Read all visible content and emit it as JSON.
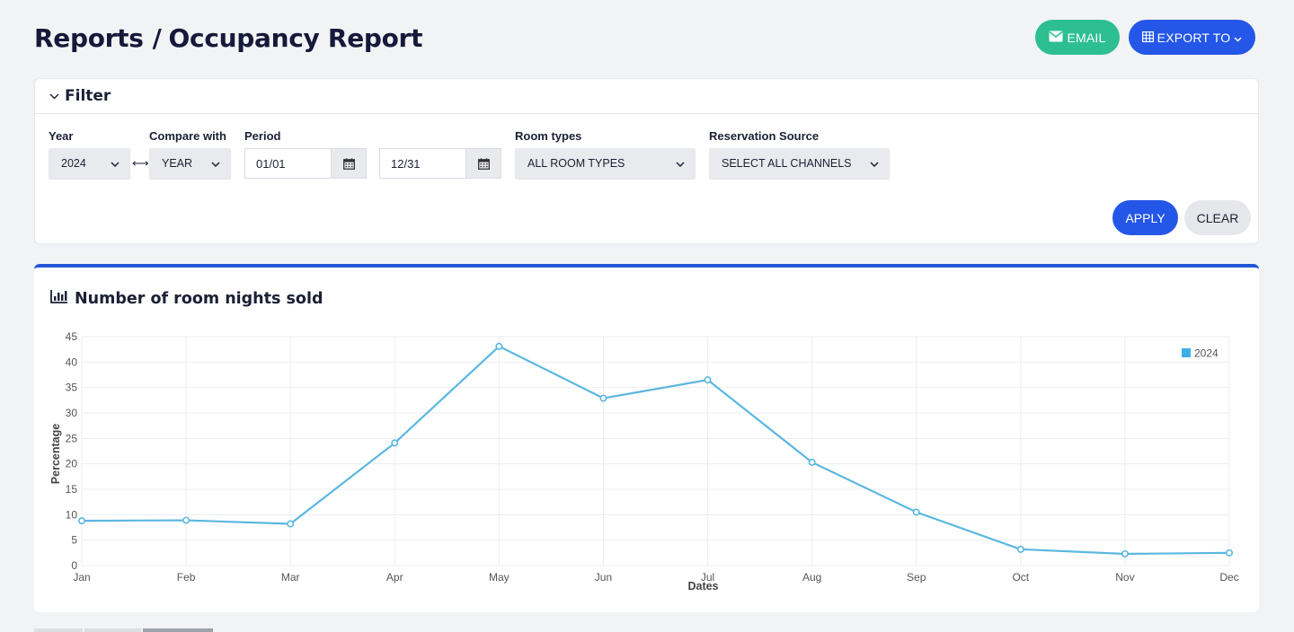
{
  "header": {
    "crumb_root": "Reports",
    "separator": "/",
    "crumb_current": "Occupancy Report"
  },
  "actions": {
    "email_label": "EMAIL",
    "export_label": "EXPORT TO"
  },
  "filter": {
    "title": "Filter",
    "year_label": "Year",
    "year_value": "2024",
    "compare_label": "Compare with",
    "compare_value": "YEAR",
    "period_label": "Period",
    "period_start": "01/01",
    "period_end": "12/31",
    "room_types_label": "Room types",
    "room_types_value": "ALL ROOM TYPES",
    "source_label": "Reservation Source",
    "source_value": "SELECT ALL CHANNELS",
    "apply_label": "APPLY",
    "clear_label": "CLEAR"
  },
  "chart_card": {
    "title": "Number of room nights sold",
    "icon": "bar-chart-icon"
  },
  "colors": {
    "line": "#5ab7e0",
    "point_fill": "#ffffff",
    "legend": "#3bb0e4",
    "accent": "#2457e8",
    "email": "#2ebf91"
  },
  "chart_data": {
    "type": "line",
    "categories": [
      "Jan",
      "Feb",
      "Mar",
      "Apr",
      "May",
      "Jun",
      "Jul",
      "Aug",
      "Sep",
      "Oct",
      "Nov",
      "Dec"
    ],
    "series": [
      {
        "name": "2024",
        "values": [
          8.8,
          8.9,
          8.2,
          24.1,
          43.1,
          32.9,
          36.5,
          20.3,
          10.5,
          3.2,
          2.3,
          2.5
        ]
      }
    ],
    "xlabel": "Dates",
    "ylabel": "Percentage",
    "ylim": [
      0,
      45
    ],
    "yticks": [
      0,
      5,
      10,
      15,
      20,
      25,
      30,
      35,
      40,
      45
    ],
    "grid": true,
    "legend": "top-right"
  }
}
